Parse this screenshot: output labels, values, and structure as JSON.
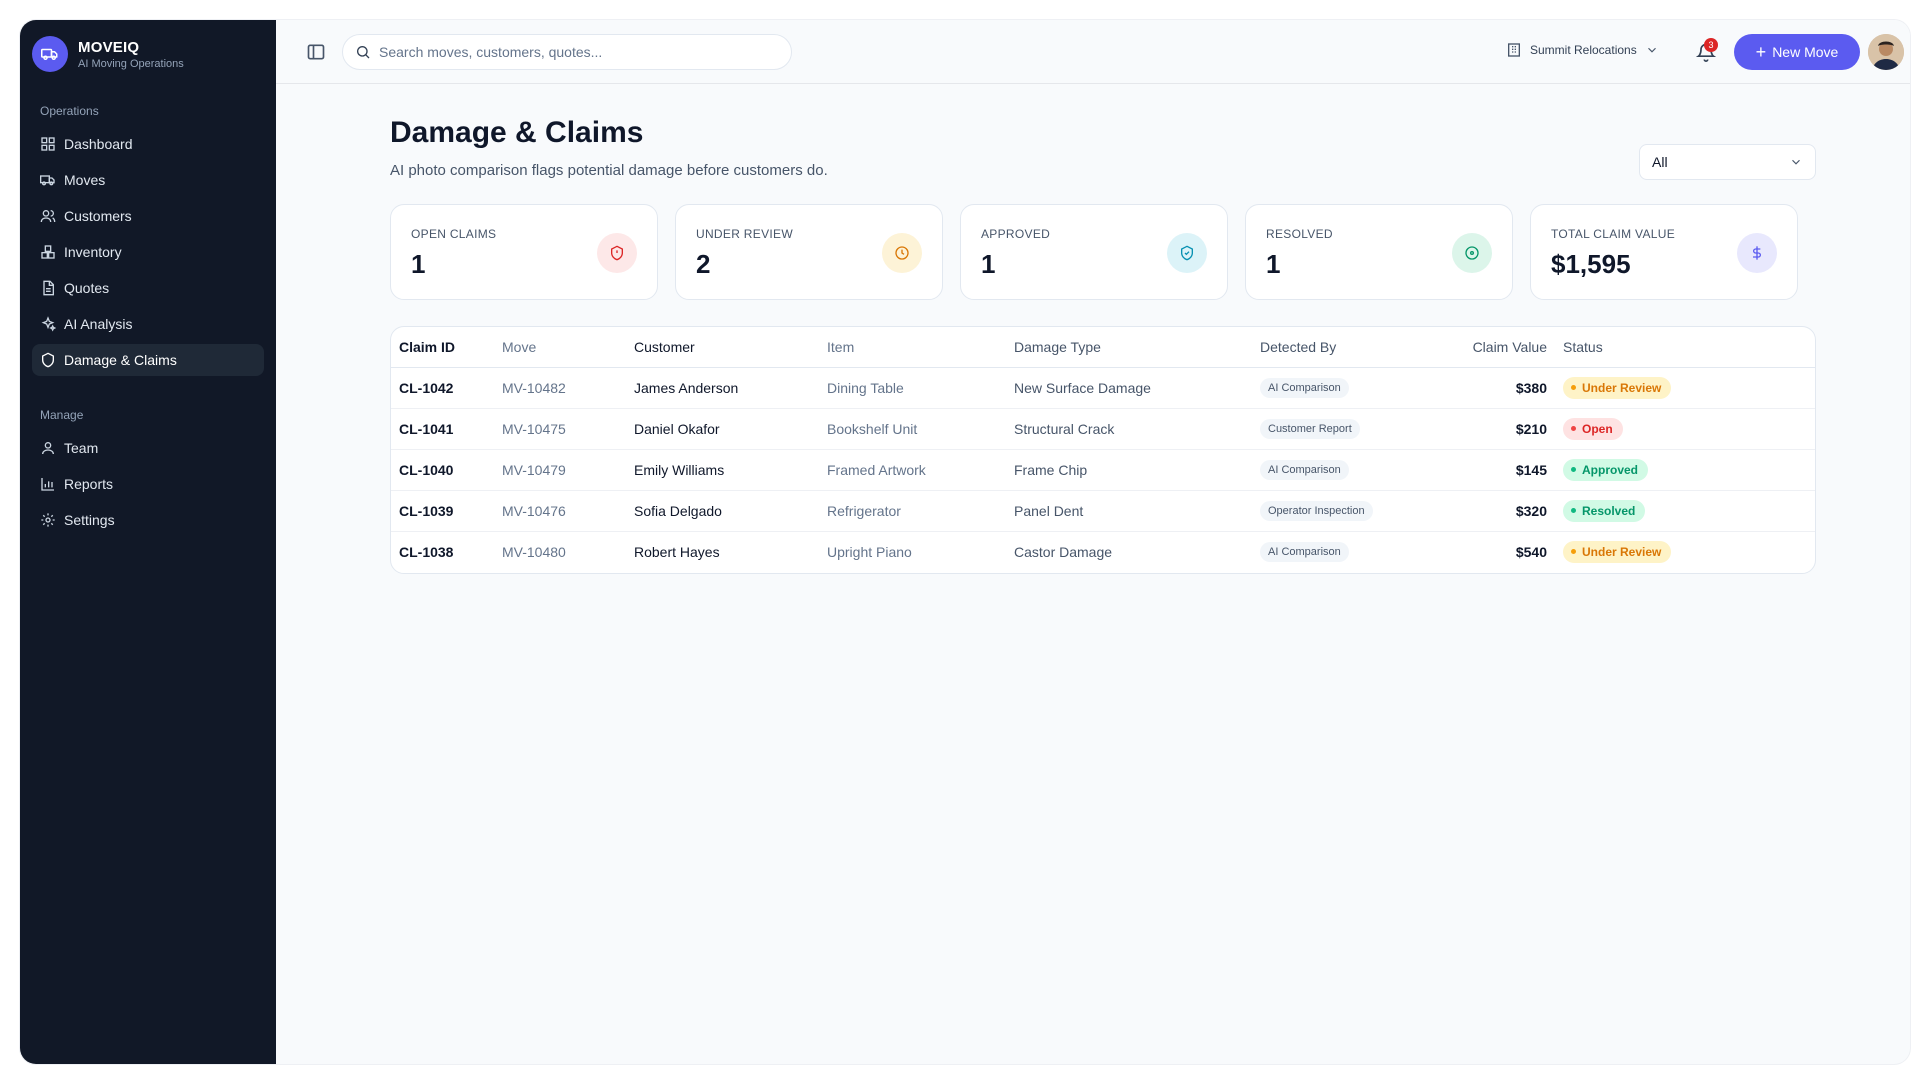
{
  "brand": {
    "name": "MOVEIQ",
    "subtitle": "AI Moving Operations"
  },
  "sidebar": {
    "sections": [
      {
        "label": "Operations",
        "items": [
          {
            "label": "Dashboard",
            "icon": "dashboard-icon"
          },
          {
            "label": "Moves",
            "icon": "truck-icon"
          },
          {
            "label": "Customers",
            "icon": "users-icon"
          },
          {
            "label": "Inventory",
            "icon": "boxes-icon"
          },
          {
            "label": "Quotes",
            "icon": "document-icon"
          },
          {
            "label": "AI Analysis",
            "icon": "sparkles-icon"
          },
          {
            "label": "Damage & Claims",
            "icon": "shield-icon",
            "active": true
          }
        ]
      },
      {
        "label": "Manage",
        "items": [
          {
            "label": "Team",
            "icon": "user-icon"
          },
          {
            "label": "Reports",
            "icon": "bar-chart-icon"
          },
          {
            "label": "Settings",
            "icon": "gear-icon"
          }
        ]
      }
    ]
  },
  "topbar": {
    "search_placeholder": "Search moves, customers, quotes...",
    "company": "Summit Relocations",
    "notifications": "3",
    "new_move_label": "New Move"
  },
  "page": {
    "title": "Damage & Claims",
    "subtitle": "AI photo comparison flags potential damage before customers do.",
    "filter_value": "All"
  },
  "stats": [
    {
      "label": "OPEN CLAIMS",
      "value": "1",
      "icon": "shield-alert-icon",
      "color": "#dc2626",
      "bg": "#fde8e8"
    },
    {
      "label": "UNDER REVIEW",
      "value": "2",
      "icon": "clock-icon",
      "color": "#d97706",
      "bg": "#fdf3d7"
    },
    {
      "label": "APPROVED",
      "value": "1",
      "icon": "shield-check-icon",
      "color": "#0891b2",
      "bg": "#dcf3f8"
    },
    {
      "label": "RESOLVED",
      "value": "1",
      "icon": "circle-check-icon",
      "color": "#059669",
      "bg": "#dcf5ea"
    },
    {
      "label": "TOTAL CLAIM VALUE",
      "value": "$1,595",
      "icon": "dollar-icon",
      "color": "#5b5bf0",
      "bg": "#e8e8fd"
    }
  ],
  "table": {
    "headers": [
      "Claim ID",
      "Move",
      "Customer",
      "Item",
      "Damage Type",
      "Detected By",
      "Claim Value",
      "Status"
    ],
    "rows": [
      {
        "id": "CL-1042",
        "move": "MV-10482",
        "customer": "James Anderson",
        "item": "Dining Table",
        "type": "New Surface Damage",
        "detected": "AI Comparison",
        "value": "$380",
        "status": "Under Review"
      },
      {
        "id": "CL-1041",
        "move": "MV-10475",
        "customer": "Daniel Okafor",
        "item": "Bookshelf Unit",
        "type": "Structural Crack",
        "detected": "Customer Report",
        "value": "$210",
        "status": "Open"
      },
      {
        "id": "CL-1040",
        "move": "MV-10479",
        "customer": "Emily Williams",
        "item": "Framed Artwork",
        "type": "Frame Chip",
        "detected": "AI Comparison",
        "value": "$145",
        "status": "Approved"
      },
      {
        "id": "CL-1039",
        "move": "MV-10476",
        "customer": "Sofia Delgado",
        "item": "Refrigerator",
        "type": "Panel Dent",
        "detected": "Operator Inspection",
        "value": "$320",
        "status": "Resolved"
      },
      {
        "id": "CL-1038",
        "move": "MV-10480",
        "customer": "Robert Hayes",
        "item": "Upright Piano",
        "type": "Castor Damage",
        "detected": "AI Comparison",
        "value": "$540",
        "status": "Under Review"
      }
    ]
  },
  "status_colors": {
    "Under Review": {
      "fg": "#d97706",
      "bg": "#fef3c7",
      "dot": "#f59e0b"
    },
    "Open": {
      "fg": "#dc2626",
      "bg": "#fee2e2",
      "dot": "#ef4444"
    },
    "Approved": {
      "fg": "#059669",
      "bg": "#d1fae5",
      "dot": "#10b981"
    },
    "Resolved": {
      "fg": "#059669",
      "bg": "#d1fae5",
      "dot": "#10b981"
    }
  }
}
